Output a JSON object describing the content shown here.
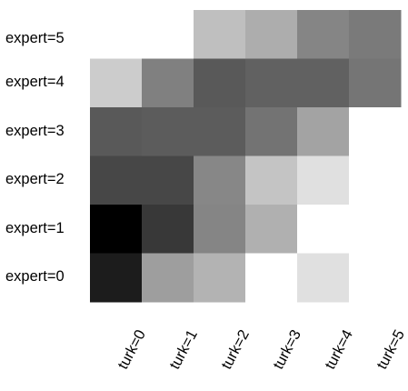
{
  "chart_data": {
    "type": "heatmap",
    "title": "",
    "xlabel": "",
    "ylabel": "",
    "x_categories": [
      "turk=0",
      "turk=1",
      "turk=2",
      "turk=3",
      "turk=4",
      "turk=5"
    ],
    "y_categories": [
      "expert=5",
      "expert=4",
      "expert=3",
      "expert=2",
      "expert=1",
      "expert=0"
    ],
    "colormap": "grayscale (darker = higher)",
    "values": [
      [
        0.0,
        0.0,
        0.25,
        0.32,
        0.48,
        0.52
      ],
      [
        0.2,
        0.5,
        0.65,
        0.62,
        0.62,
        0.54
      ],
      [
        0.65,
        0.64,
        0.64,
        0.55,
        0.36,
        0.0
      ],
      [
        0.72,
        0.72,
        0.47,
        0.23,
        0.12,
        0.0
      ],
      [
        1.0,
        0.78,
        0.48,
        0.31,
        0.0,
        0.0
      ],
      [
        0.89,
        0.38,
        0.3,
        0.0,
        0.12,
        0.0
      ]
    ],
    "grid": false,
    "legend": "none"
  }
}
